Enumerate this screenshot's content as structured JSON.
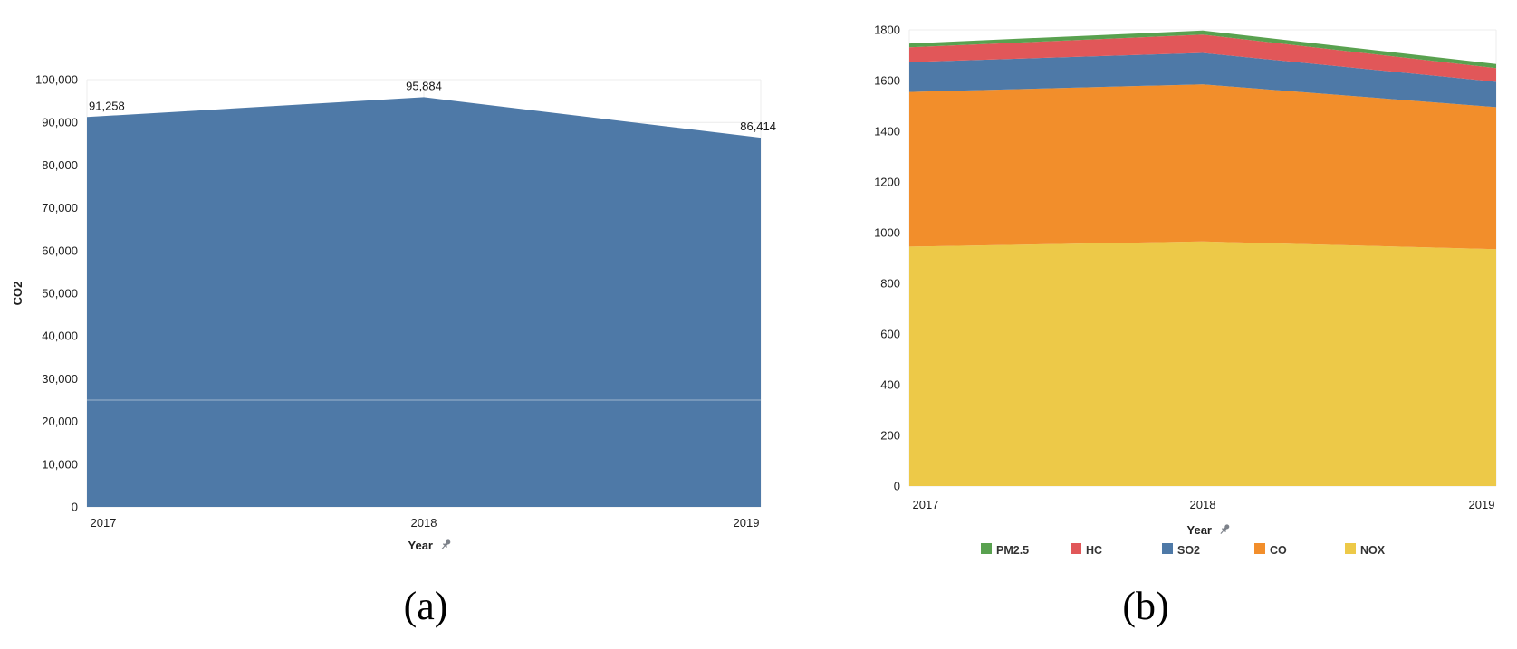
{
  "figure": {
    "captions": {
      "a": "(a)",
      "b": "(b)"
    },
    "icons": {
      "axis_pin": "pushpin-icon"
    }
  },
  "chart_data": [
    {
      "id": "a",
      "type": "area",
      "title": "",
      "xlabel": "Year",
      "ylabel": "CO2",
      "categories": [
        "2017",
        "2018",
        "2019"
      ],
      "series": [
        {
          "name": "CO2",
          "color": "#4E79A7",
          "values": [
            91258,
            95884,
            86414
          ]
        }
      ],
      "data_labels": [
        "91,258",
        "95,884",
        "86,414"
      ],
      "ylim": [
        0,
        100000
      ],
      "ytick_labels": [
        "0",
        "10,000",
        "20,000",
        "30,000",
        "40,000",
        "50,000",
        "60,000",
        "70,000",
        "80,000",
        "90,000",
        "100,000"
      ],
      "grid": true,
      "legend": false,
      "legend_order": [],
      "faint_inner_line_value": 25000,
      "xlabel_pinned": true
    },
    {
      "id": "b",
      "type": "stacked-area",
      "title": "",
      "xlabel": "Year",
      "ylabel": "",
      "categories": [
        "2017",
        "2018",
        "2019"
      ],
      "series": [
        {
          "name": "NOX",
          "color": "#EDC948",
          "values": [
            945,
            965,
            935
          ]
        },
        {
          "name": "CO",
          "color": "#F28E2B",
          "values": [
            610,
            620,
            560
          ]
        },
        {
          "name": "SO2",
          "color": "#4E79A7",
          "values": [
            118,
            124,
            100
          ]
        },
        {
          "name": "HC",
          "color": "#E15759",
          "values": [
            58,
            72,
            54
          ]
        },
        {
          "name": "PM2.5",
          "color": "#59A14F",
          "values": [
            15,
            16,
            16
          ]
        }
      ],
      "ylim": [
        0,
        1800
      ],
      "ytick_labels": [
        "0",
        "200",
        "400",
        "600",
        "800",
        "1000",
        "1200",
        "1400",
        "1600",
        "1800"
      ],
      "grid": true,
      "legend": true,
      "legend_order": [
        "PM2.5",
        "HC",
        "SO2",
        "CO",
        "NOX"
      ],
      "legend_position": "bottom",
      "xlabel_pinned": true
    }
  ]
}
